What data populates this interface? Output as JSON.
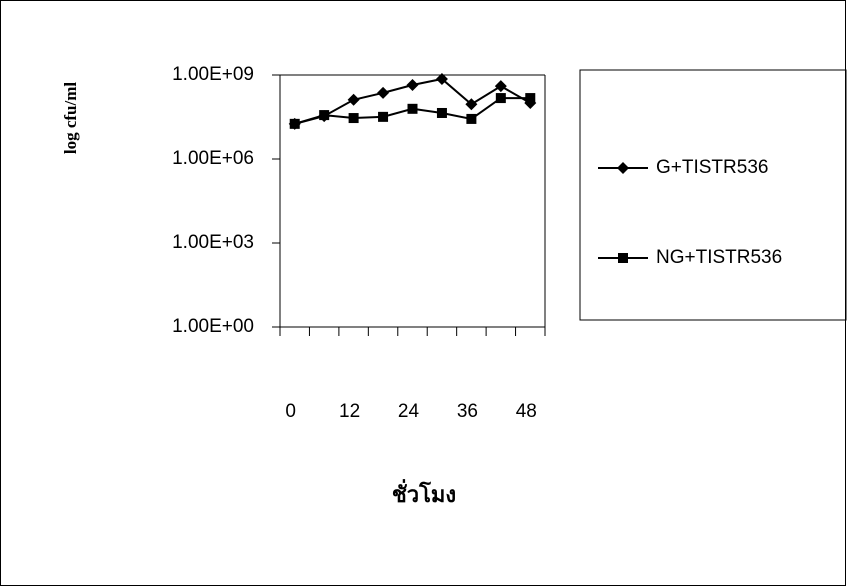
{
  "chart_data": {
    "type": "line",
    "x_label": "ชั่วโมง",
    "y_label": "log cfu/ml",
    "categories": [
      "0",
      null,
      "12",
      null,
      "24",
      null,
      "36",
      null,
      "48"
    ],
    "series": [
      {
        "name": "G+TISTR536",
        "color": "#000000",
        "marker": "diamond",
        "values": [
          18000000,
          34000000,
          130000000,
          230000000,
          440000000,
          720000000,
          90000000,
          400000000,
          100000000
        ]
      },
      {
        "name": "NG+TISTR536",
        "color": "#000000",
        "marker": "square",
        "values": [
          18000000,
          37000000,
          29000000,
          32000000,
          62000000,
          44000000,
          27000000,
          150000000,
          150000000
        ]
      }
    ],
    "ylim": [
      1,
      1000000000
    ],
    "yscale": "log",
    "yticks": [
      {
        "value": 1,
        "label": "1.00E+00"
      },
      {
        "value": 1000,
        "label": "1.00E+03"
      },
      {
        "value": 1000000,
        "label": "1.00E+06"
      },
      {
        "value": 1000000000,
        "label": "1.00E+09"
      }
    ],
    "legend": "right"
  }
}
